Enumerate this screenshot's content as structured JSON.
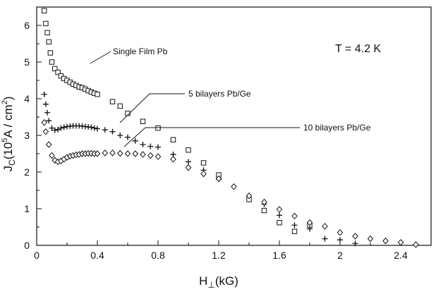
{
  "chart_data": {
    "type": "scatter",
    "title": "",
    "xlabel": {
      "main": "H",
      "sub": "⊥",
      "rest": "(kG)"
    },
    "ylabel": {
      "main": "J",
      "sub": "C",
      "p1": "(10",
      "sup1": "5",
      "p2": "A / cm",
      "sup2": "2",
      "p3": ")"
    },
    "xlim": [
      0,
      2.6
    ],
    "ylim": [
      0,
      6.5
    ],
    "x_ticks": [
      0,
      0.4,
      0.8,
      1.2,
      1.6,
      2,
      2.4
    ],
    "x_tick_labels": [
      "0",
      "0.4",
      "0.8",
      "1.2",
      "1.6",
      "2",
      "2.4"
    ],
    "y_ticks": [
      0,
      1,
      2,
      3,
      4,
      5,
      6
    ],
    "y_tick_labels": [
      "0",
      "1",
      "2",
      "3",
      "4",
      "5",
      "6"
    ],
    "grid": false,
    "temperature_label": "T = 4.2 K",
    "series": [
      {
        "name": "Single Film Pb",
        "marker": "square",
        "x": [
          0.05,
          0.06,
          0.07,
          0.08,
          0.09,
          0.1,
          0.12,
          0.14,
          0.16,
          0.18,
          0.2,
          0.22,
          0.24,
          0.26,
          0.28,
          0.3,
          0.32,
          0.34,
          0.36,
          0.38,
          0.4,
          0.5,
          0.55,
          0.6,
          0.7,
          0.8,
          0.9,
          1.0,
          1.1,
          1.2,
          1.4,
          1.5,
          1.6,
          1.7,
          1.8
        ],
        "y": [
          6.4,
          6.05,
          5.8,
          5.55,
          5.25,
          5.0,
          4.82,
          4.72,
          4.62,
          4.55,
          4.5,
          4.45,
          4.4,
          4.36,
          4.32,
          4.3,
          4.26,
          4.22,
          4.18,
          4.15,
          4.12,
          3.92,
          3.8,
          3.6,
          3.38,
          3.2,
          2.88,
          2.6,
          2.25,
          1.92,
          1.25,
          0.95,
          0.62,
          0.38,
          0.55
        ]
      },
      {
        "name": "5 bilayers Pb/Ge",
        "marker": "plus",
        "x": [
          0.05,
          0.06,
          0.07,
          0.08,
          0.1,
          0.12,
          0.14,
          0.16,
          0.18,
          0.2,
          0.22,
          0.24,
          0.26,
          0.28,
          0.3,
          0.32,
          0.34,
          0.36,
          0.38,
          0.4,
          0.45,
          0.5,
          0.55,
          0.6,
          0.65,
          0.7,
          0.75,
          0.8,
          0.9,
          1.0,
          1.1,
          1.2,
          1.4,
          1.5,
          1.6,
          1.7,
          1.8,
          1.9,
          2.0,
          2.1
        ],
        "y": [
          4.12,
          3.85,
          3.62,
          3.4,
          3.2,
          3.14,
          3.16,
          3.2,
          3.22,
          3.24,
          3.25,
          3.26,
          3.26,
          3.26,
          3.25,
          3.24,
          3.23,
          3.22,
          3.2,
          3.18,
          3.15,
          3.1,
          3.0,
          2.95,
          2.85,
          2.75,
          2.7,
          2.68,
          2.48,
          2.28,
          2.05,
          1.8,
          1.35,
          1.12,
          0.82,
          0.55,
          0.45,
          0.18,
          0.15,
          0.05
        ]
      },
      {
        "name": "10 bilayers Pb/Ge",
        "marker": "diamond",
        "x": [
          0.05,
          0.06,
          0.08,
          0.1,
          0.12,
          0.14,
          0.16,
          0.18,
          0.2,
          0.22,
          0.24,
          0.26,
          0.28,
          0.3,
          0.32,
          0.34,
          0.36,
          0.38,
          0.4,
          0.45,
          0.5,
          0.55,
          0.6,
          0.65,
          0.7,
          0.75,
          0.8,
          0.9,
          1.0,
          1.1,
          1.2,
          1.3,
          1.4,
          1.5,
          1.6,
          1.7,
          1.8,
          1.9,
          2.0,
          2.1,
          2.2,
          2.3,
          2.4,
          2.5
        ],
        "y": [
          3.35,
          3.1,
          2.75,
          2.45,
          2.32,
          2.28,
          2.3,
          2.35,
          2.4,
          2.43,
          2.45,
          2.47,
          2.48,
          2.5,
          2.5,
          2.51,
          2.51,
          2.5,
          2.5,
          2.52,
          2.52,
          2.51,
          2.5,
          2.5,
          2.48,
          2.45,
          2.42,
          2.35,
          2.12,
          1.95,
          1.82,
          1.6,
          1.35,
          1.18,
          0.98,
          0.8,
          0.62,
          0.52,
          0.35,
          0.25,
          0.18,
          0.12,
          0.08,
          0.02
        ]
      }
    ],
    "annotations": [
      {
        "text": "Single Film Pb",
        "series": 0
      },
      {
        "text": "5 bilayers Pb/Ge",
        "series": 1
      },
      {
        "text": "10 bilayers Pb/Ge",
        "series": 2
      }
    ]
  }
}
